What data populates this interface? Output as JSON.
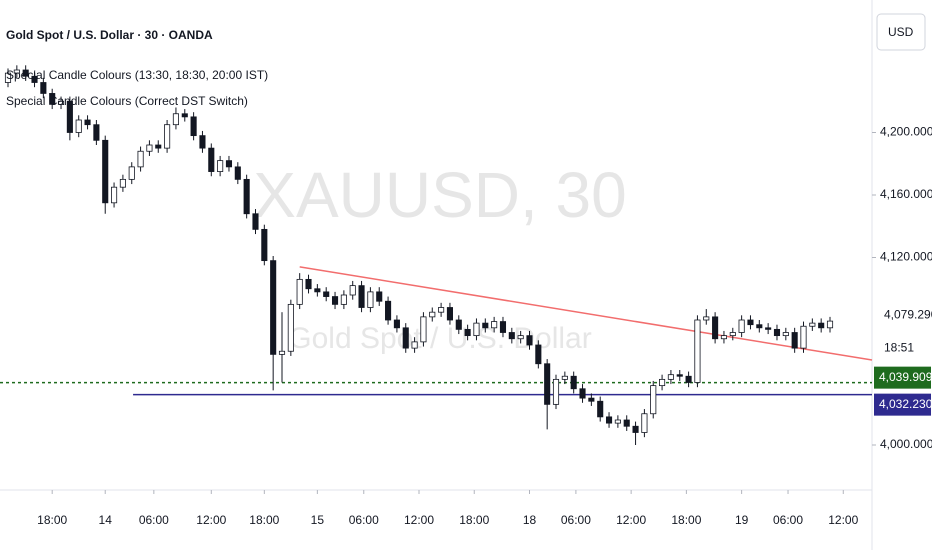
{
  "chart_data": {
    "type": "candlestick",
    "title": "Gold Spot / U.S. Dollar · 30 · OANDA",
    "indicators": [
      "Special Candle Colours (13:30, 18:30, 20:00 IST)",
      "Special Candle Colours (Correct DST Switch)"
    ],
    "watermark": "XAUUSD, 30",
    "watermark_subtitle": "Gold Spot / U.S. Dollar",
    "currency": "USD",
    "countdown": "18:51",
    "up_color": "#ffffff",
    "down_color": "#131722",
    "x": [
      0,
      2,
      4,
      6,
      8,
      10,
      12,
      14,
      16,
      18,
      20,
      22,
      24,
      26,
      28,
      30,
      32,
      34,
      36,
      38,
      40,
      42,
      44,
      46,
      48,
      50,
      52,
      54,
      56,
      58,
      60,
      62,
      64,
      66,
      68,
      70,
      72,
      74,
      76,
      78,
      80,
      82,
      84,
      86,
      88,
      90,
      92,
      94,
      96,
      98,
      100,
      102,
      104,
      106,
      108,
      110,
      112,
      114,
      116,
      118,
      120,
      122,
      124,
      126,
      128,
      130,
      132,
      134,
      136,
      138,
      140,
      142,
      144,
      146,
      148,
      150,
      152,
      154,
      156,
      158,
      160,
      162,
      164,
      166,
      168,
      170,
      172,
      174,
      176,
      178,
      180,
      182,
      184,
      186
    ],
    "open": [
      4232,
      4238,
      4240,
      4236,
      4232,
      4225,
      4218,
      4220,
      4200,
      4208,
      4205,
      4195,
      4155,
      4165,
      4170,
      4178,
      4188,
      4192,
      4190,
      4205,
      4212,
      4210,
      4198,
      4190,
      4175,
      4182,
      4178,
      4170,
      4148,
      4138,
      4118,
      4058,
      4060,
      4090,
      4106,
      4100,
      4098,
      4095,
      4090,
      4096,
      4102,
      4088,
      4098,
      4092,
      4080,
      4075,
      4062,
      4066,
      4082,
      4085,
      4088,
      4080,
      4074,
      4070,
      4078,
      4075,
      4079,
      4072,
      4068,
      4070,
      4064,
      4052,
      4026,
      4042,
      4044,
      4036,
      4030,
      4028,
      4018,
      4014,
      4016,
      4012,
      4008,
      4020,
      4038,
      4042,
      4045,
      4044,
      4040,
      4080,
      4082,
      4068,
      4070,
      4072,
      4080,
      4077,
      4075,
      4074,
      4070,
      4072,
      4062,
      4076,
      4078,
      4075
    ],
    "high": [
      4241,
      4243,
      4243,
      4239,
      4235,
      4228,
      4223,
      4223,
      4211,
      4211,
      4208,
      4198,
      4168,
      4173,
      4181,
      4191,
      4195,
      4195,
      4208,
      4216,
      4215,
      4213,
      4201,
      4193,
      4185,
      4185,
      4181,
      4173,
      4151,
      4141,
      4121,
      4085,
      4093,
      4110,
      4109,
      4103,
      4101,
      4098,
      4099,
      4105,
      4105,
      4101,
      4101,
      4095,
      4083,
      4078,
      4069,
      4085,
      4088,
      4091,
      4091,
      4083,
      4077,
      4081,
      4081,
      4082,
      4082,
      4075,
      4073,
      4073,
      4067,
      4055,
      4045,
      4047,
      4047,
      4039,
      4033,
      4031,
      4021,
      4019,
      4019,
      4015,
      4023,
      4041,
      4045,
      4048,
      4048,
      4047,
      4083,
      4087,
      4085,
      4073,
      4075,
      4083,
      4083,
      4080,
      4078,
      4077,
      4075,
      4075,
      4079,
      4081,
      4081,
      4082
    ],
    "low": [
      4229,
      4235,
      4233,
      4229,
      4222,
      4215,
      4215,
      4195,
      4197,
      4202,
      4192,
      4148,
      4152,
      4162,
      4167,
      4175,
      4185,
      4187,
      4187,
      4202,
      4207,
      4195,
      4187,
      4172,
      4172,
      4175,
      4167,
      4145,
      4135,
      4115,
      4035,
      4040,
      4057,
      4087,
      4097,
      4095,
      4092,
      4087,
      4087,
      4093,
      4085,
      4085,
      4089,
      4077,
      4072,
      4059,
      4059,
      4063,
      4079,
      4082,
      4077,
      4071,
      4067,
      4067,
      4072,
      4072,
      4069,
      4065,
      4065,
      4061,
      4049,
      4010,
      4023,
      4039,
      4033,
      4027,
      4025,
      4015,
      4011,
      4011,
      4009,
      4000,
      4005,
      4017,
      4035,
      4039,
      4041,
      4037,
      4037,
      4077,
      4065,
      4065,
      4067,
      4069,
      4074,
      4072,
      4071,
      4067,
      4067,
      4059,
      4059,
      4073,
      4072,
      4072
    ],
    "close": [
      4238,
      4240,
      4236,
      4232,
      4225,
      4218,
      4220,
      4200,
      4208,
      4205,
      4195,
      4155,
      4165,
      4170,
      4178,
      4188,
      4192,
      4190,
      4205,
      4212,
      4210,
      4198,
      4190,
      4175,
      4182,
      4178,
      4170,
      4148,
      4138,
      4118,
      4058,
      4060,
      4090,
      4106,
      4100,
      4098,
      4095,
      4090,
      4096,
      4102,
      4088,
      4098,
      4092,
      4080,
      4075,
      4062,
      4066,
      4082,
      4085,
      4088,
      4080,
      4074,
      4070,
      4078,
      4075,
      4079,
      4072,
      4068,
      4070,
      4064,
      4052,
      4026,
      4042,
      4044,
      4036,
      4030,
      4028,
      4018,
      4014,
      4016,
      4012,
      4008,
      4020,
      4038,
      4042,
      4045,
      4044,
      4040,
      4080,
      4082,
      4068,
      4070,
      4072,
      4080,
      4077,
      4075,
      4074,
      4070,
      4072,
      4062,
      4076,
      4078,
      4075,
      4079.29
    ],
    "last_price": {
      "value": 4079.29,
      "label": "4,079.290"
    },
    "price_lines": [
      {
        "value": 4039.909,
        "label": "4,039.909",
        "color": "#1e6b1e",
        "style": "dashed",
        "x_start": -1.81
      },
      {
        "value": 4032.23,
        "label": "4,032.230",
        "color": "#2e2a8f",
        "style": "solid",
        "x_start": 28.3
      }
    ],
    "trendline": {
      "color": "#f26d6d",
      "x": [
        66,
        195.5
      ],
      "y": [
        4114,
        4054.4
      ]
    },
    "xlim": [
      -1.81,
      195.5
    ],
    "ylim": [
      3971.2,
      4284.8
    ],
    "yticks": [
      {
        "value": 4000,
        "label": "4,000.000"
      },
      {
        "value": 4120,
        "label": "4,120.000"
      },
      {
        "value": 4160,
        "label": "4,160.000"
      },
      {
        "value": 4200,
        "label": "4,200.000"
      }
    ],
    "xticks": [
      {
        "value": 10,
        "label": "18:00"
      },
      {
        "value": 22,
        "label": "14"
      },
      {
        "value": 33,
        "label": "06:00"
      },
      {
        "value": 46,
        "label": "12:00"
      },
      {
        "value": 58,
        "label": "18:00"
      },
      {
        "value": 70,
        "label": "15"
      },
      {
        "value": 80.5,
        "label": "06:00"
      },
      {
        "value": 93,
        "label": "12:00"
      },
      {
        "value": 105.5,
        "label": "18:00"
      },
      {
        "value": 118,
        "label": "18"
      },
      {
        "value": 128.5,
        "label": "06:00"
      },
      {
        "value": 141,
        "label": "12:00"
      },
      {
        "value": 153.5,
        "label": "18:00"
      },
      {
        "value": 166,
        "label": "19"
      },
      {
        "value": 176.5,
        "label": "06:00"
      },
      {
        "value": 189,
        "label": "12:00"
      }
    ]
  }
}
